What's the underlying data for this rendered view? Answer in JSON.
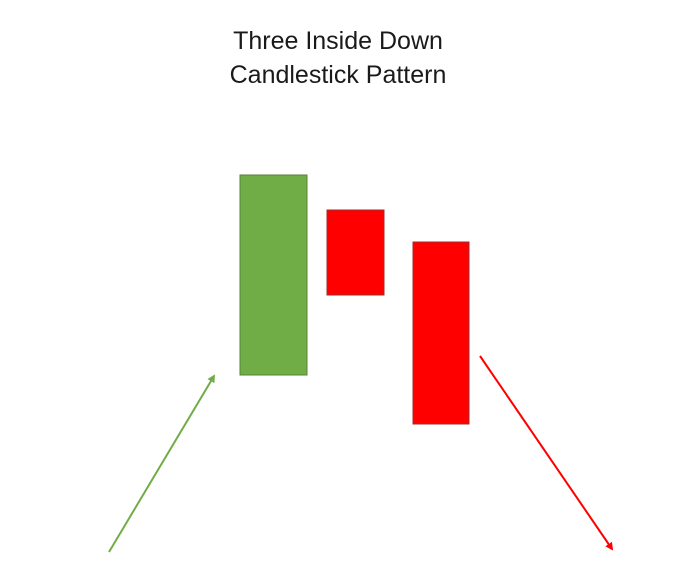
{
  "title": {
    "line1": "Three Inside Down",
    "line2": "Candlestick Pattern"
  },
  "candles": [
    {
      "color": "bull",
      "open": 375,
      "close": 175
    },
    {
      "color": "bear",
      "open": 210,
      "close": 295
    },
    {
      "color": "bear",
      "open": 242,
      "close": 424
    }
  ],
  "trend_arrows": [
    {
      "name": "uptrend-arrow",
      "direction": "up",
      "color": "#70ad47"
    },
    {
      "name": "downtrend-arrow",
      "direction": "down",
      "color": "#ff0000"
    }
  ],
  "colors": {
    "bull_fill": "#70ad47",
    "bull_stroke": "#548235",
    "bear_fill": "#ff0000",
    "bear_stroke": "#a02b2b"
  }
}
